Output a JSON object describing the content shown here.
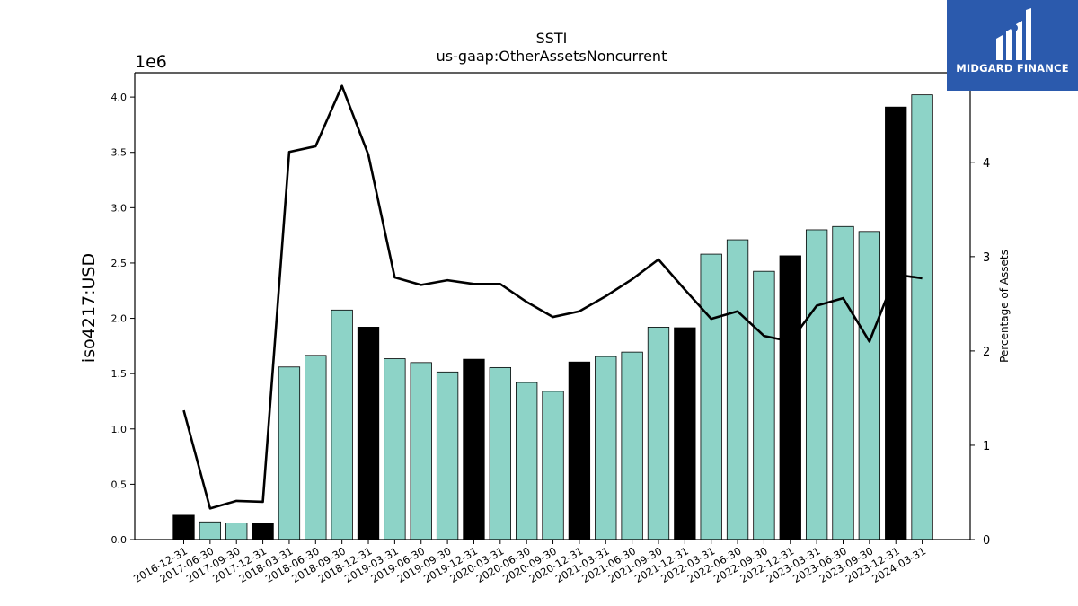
{
  "logo": {
    "name": "MIDGARD FINANCE"
  },
  "chart_data": {
    "type": "bar",
    "title": "SSTI",
    "subtitle": "us-gaap:OtherAssetsNoncurrent",
    "ylabel": "iso4217:USD",
    "y_offset_label": "1e6",
    "y2label": "Percentage of Assets",
    "ylim": [
      0,
      4220000
    ],
    "y2lim": [
      0,
      4.95
    ],
    "yticks": [
      0,
      0.5,
      1.0,
      1.5,
      2.0,
      2.5,
      3.0,
      3.5,
      4.0
    ],
    "yticks_labels": [
      "0.0",
      "0.5",
      "1.0",
      "1.5",
      "2.0",
      "2.5",
      "3.0",
      "3.5",
      "4.0"
    ],
    "y2ticks": [
      0,
      1,
      2,
      3,
      4
    ],
    "y2ticks_labels": [
      "0",
      "1",
      "2",
      "3",
      "4"
    ],
    "categories": [
      "2016-12-31",
      "2017-06-30",
      "2017-09-30",
      "2017-12-31",
      "2018-03-31",
      "2018-06-30",
      "2018-09-30",
      "2018-12-31",
      "2019-03-31",
      "2019-06-30",
      "2019-09-30",
      "2019-12-31",
      "2020-03-31",
      "2020-06-30",
      "2020-09-30",
      "2020-12-31",
      "2021-03-31",
      "2021-06-30",
      "2021-09-30",
      "2021-12-31",
      "2022-03-31",
      "2022-06-30",
      "2022-09-30",
      "2022-12-31",
      "2023-03-31",
      "2023-06-30",
      "2023-09-30",
      "2023-12-31",
      "2024-03-31"
    ],
    "series": [
      {
        "type": "bar",
        "values": [
          220000,
          160000,
          150000,
          145000,
          1560000,
          1665000,
          2075000,
          1920000,
          1635000,
          1600000,
          1515000,
          1630000,
          1555000,
          1420000,
          1340000,
          1605000,
          1655000,
          1695000,
          1920000,
          1915000,
          2580000,
          2710000,
          2425000,
          2565000,
          2800000,
          2830000,
          2785000,
          3910000,
          4020000
        ],
        "colors": [
          "#000000",
          "#8dd3c7",
          "#8dd3c7",
          "#000000",
          "#8dd3c7",
          "#8dd3c7",
          "#8dd3c7",
          "#000000",
          "#8dd3c7",
          "#8dd3c7",
          "#8dd3c7",
          "#000000",
          "#8dd3c7",
          "#8dd3c7",
          "#8dd3c7",
          "#000000",
          "#8dd3c7",
          "#8dd3c7",
          "#8dd3c7",
          "#000000",
          "#8dd3c7",
          "#8dd3c7",
          "#8dd3c7",
          "#000000",
          "#8dd3c7",
          "#8dd3c7",
          "#8dd3c7",
          "#000000",
          "#8dd3c7"
        ]
      },
      {
        "type": "line",
        "axis": "right",
        "color": "#000000",
        "values": [
          1.37,
          0.33,
          0.41,
          0.4,
          4.11,
          4.17,
          4.81,
          4.08,
          2.78,
          2.7,
          2.75,
          2.71,
          2.71,
          2.52,
          2.36,
          2.42,
          2.58,
          2.76,
          2.97,
          2.65,
          2.34,
          2.42,
          2.16,
          2.1,
          2.48,
          2.56,
          2.1,
          2.81,
          2.77
        ]
      }
    ],
    "bar_colors": {
      "highlight": "#000000",
      "default": "#8dd3c7"
    },
    "grid": false
  }
}
